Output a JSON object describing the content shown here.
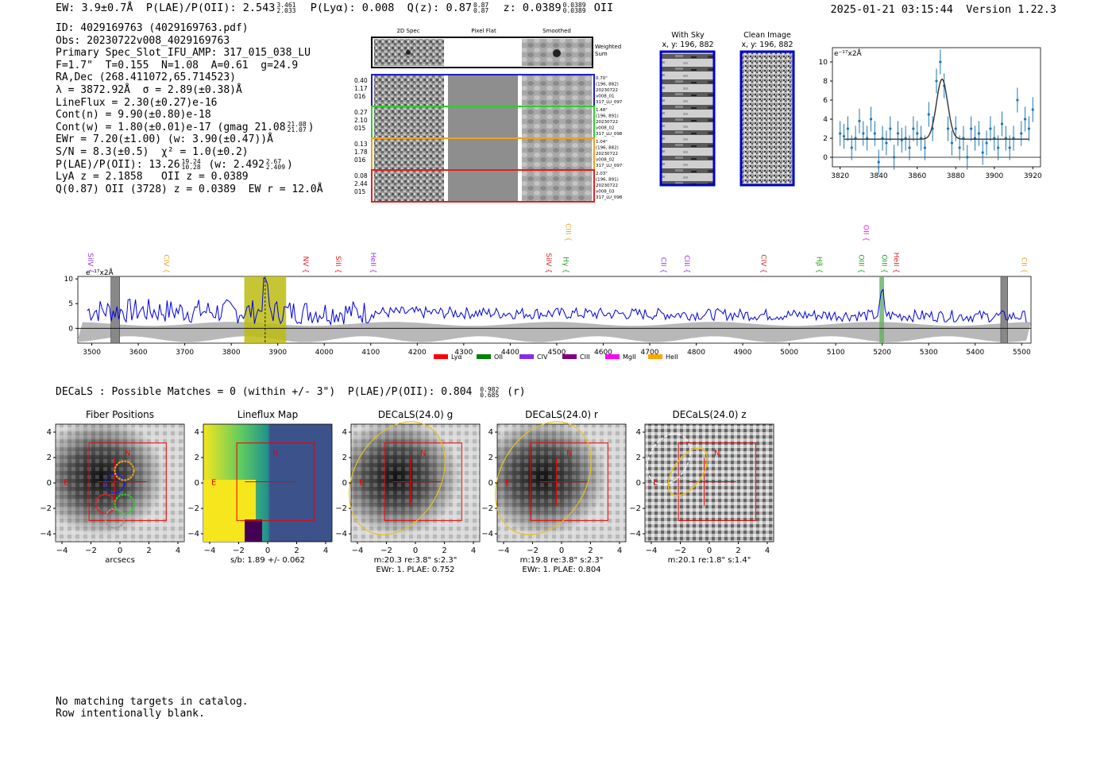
{
  "header": {
    "ew": "EW: 3.9±0.7Å",
    "plae_label": "P(LAE)/P(OII): 2.543",
    "plae_hi": "3.461",
    "plae_lo": "2.033",
    "plya": "P(Lyα): 0.008",
    "qz_label": "Q(z): 0.87",
    "qz_hi": "0.87",
    "qz_lo": "0.87",
    "z_label": "z: 0.0389",
    "z_hi": "0.0389",
    "z_lo": "0.0389",
    "line": "OII",
    "timestamp": "2025-01-21 03:15:44",
    "version": "Version 1.22.3"
  },
  "info": {
    "id": "ID: 4029169763 (4029169763.pdf)",
    "obs": "Obs: 20230722v008_4029169763",
    "slot": "Primary Spec_Slot_IFU_AMP: 317_015_038_LU",
    "params": "F=1.7\"  T=0.155  N=1.08  A=0.61  g=24.9",
    "radec": "RA,Dec (268.411072,65.714523)",
    "lambda": "λ = 3872.92Å  σ = 2.89(±0.38)Å",
    "lineflux": "LineFlux = 2.30(±0.27)e-16",
    "cont_n": "Cont(n) = 9.90(±0.80)e-18",
    "cont_w": "Cont(w) = 1.80(±0.01)e-17 (gmag 21.08",
    "gmag_hi": "21.08",
    "gmag_lo": "21.07",
    "ewr": "EWr = 7.20(±1.00) (w: 3.90(±0.47))Å",
    "sn": "S/N = 8.3(±0.5)  χ² = 1.0(±0.2)",
    "plae2": "P(LAE)/P(OII): 13.26",
    "plae2_hi": "19.24",
    "plae2_lo": "10.28",
    "plae2_w": "(w: 2.492",
    "plae2_w_hi": "2.67",
    "plae2_w_lo": "2.409",
    "lya_z": "LyA z = 2.1858   OII z = 0.0389",
    "q_line": "Q(0.87) OII (3728) z = 0.0389  EW r = 12.0Å"
  },
  "spec2d": {
    "col_titles": [
      "2D Spec",
      "Pixel Flat",
      "Smoothed"
    ],
    "weighted_sum": [
      "Weighted",
      "Sum"
    ],
    "rows": [
      {
        "left": [
          "0.40",
          "1.17",
          "016"
        ],
        "right": [
          "0.70\"",
          "(196, 882)",
          "20230722",
          "v008_01",
          "317_LU_097"
        ],
        "color": "#1f1fc8"
      },
      {
        "left": [
          "0.27",
          "2.10",
          "015"
        ],
        "right": [
          "1.48\"",
          "(196, 891)",
          "20230722",
          "v008_02",
          "317_LU_098"
        ],
        "color": "#2ecc2e"
      },
      {
        "left": [
          "0.13",
          "1.78",
          "016"
        ],
        "right": [
          "1.04\"",
          "(196, 882)",
          "20230722",
          "v008_02",
          "317_LU_097"
        ],
        "color": "#f0a020"
      },
      {
        "left": [
          "0.08",
          "2.44",
          "015"
        ],
        "right": [
          "2.03\"",
          "(196, 891)",
          "20230722",
          "v008_03",
          "317_LU_098"
        ],
        "color": "#e02020"
      }
    ]
  },
  "cutouts": {
    "with_sky": [
      "With Sky",
      "x, y: 196, 882"
    ],
    "clean": [
      "Clean Image",
      "x, y: 196, 882"
    ]
  },
  "chart_data": [
    {
      "type": "line",
      "title": "",
      "unit_label": "e⁻¹⁷x2Å",
      "x": [
        3820,
        3822,
        3824,
        3826,
        3828,
        3830,
        3832,
        3834,
        3836,
        3838,
        3840,
        3842,
        3844,
        3846,
        3848,
        3850,
        3852,
        3854,
        3856,
        3858,
        3860,
        3862,
        3864,
        3866,
        3868,
        3870,
        3872,
        3874,
        3876,
        3878,
        3880,
        3882,
        3884,
        3886,
        3888,
        3890,
        3892,
        3894,
        3896,
        3898,
        3900,
        3902,
        3904,
        3906,
        3908,
        3910,
        3912,
        3914,
        3916,
        3918,
        3920
      ],
      "data": [
        2.5,
        2.2,
        3.0,
        1.0,
        2.0,
        3.8,
        2.5,
        2.0,
        4.0,
        2.5,
        -0.5,
        2.0,
        1.5,
        3.0,
        0.0,
        2.5,
        1.8,
        2.0,
        1.0,
        3.0,
        2.5,
        2.0,
        1.0,
        4.5,
        3.0,
        8.0,
        10.0,
        7.5,
        3.0,
        1.5,
        3.0,
        1.0,
        2.0,
        0.0,
        3.0,
        2.0,
        2.5,
        0.5,
        1.5,
        3.0,
        2.0,
        1.0,
        3.5,
        2.0,
        1.0,
        2.0,
        6.0,
        2.5,
        4.0,
        3.0,
        5.0
      ],
      "fit_baseline": 1.9,
      "fit_peak": 8.2,
      "fit_center": 3872.9,
      "fit_sigma": 2.89,
      "xticks": [
        3820,
        3840,
        3860,
        3880,
        3900,
        3920
      ],
      "yticks": [
        0,
        2,
        4,
        6,
        8,
        10
      ],
      "xlim": [
        3816,
        3924
      ],
      "ylim": [
        -1,
        11.5
      ],
      "color": "#1f77b4"
    },
    {
      "type": "line",
      "title": "",
      "unit_label": "e⁻¹⁷x2Å",
      "xlim": [
        3470,
        5520
      ],
      "ylim": [
        -3,
        10.5
      ],
      "xticks": [
        3500,
        3600,
        3700,
        3800,
        3900,
        4000,
        4100,
        4200,
        4300,
        4400,
        4500,
        4600,
        4700,
        4800,
        4900,
        5000,
        5100,
        5200,
        5300,
        5400,
        5500
      ],
      "yticks": [
        0,
        5,
        10
      ],
      "color": "#0000e0",
      "emission_peak_x": 3872.9,
      "emission_peak_y": 10,
      "highlight_band": [
        3828,
        3918
      ],
      "masked_bands": [
        [
          3541,
          3560
        ],
        [
          5455,
          5470
        ]
      ],
      "oii_band": [
        5194,
        5204
      ],
      "lines": [
        {
          "x": 3492,
          "label": "SiIV",
          "color": "#9a30e0",
          "row": 1
        },
        {
          "x": 3655,
          "label": "CIV",
          "color": "#f0a020",
          "row": 1
        },
        {
          "x": 3955,
          "label": "NV",
          "color": "#e02020",
          "row": 1
        },
        {
          "x": 4025,
          "label": "SiII",
          "color": "#e02020",
          "row": 1
        },
        {
          "x": 4100,
          "label": "HeII",
          "color": "#9a30e0",
          "row": 1
        },
        {
          "x": 4478,
          "label": "SiIV",
          "color": "#e02020",
          "row": 1
        },
        {
          "x": 4515,
          "label": "Hγ",
          "color": "#20a020",
          "row": 1
        },
        {
          "x": 4520,
          "label": "CIII",
          "color": "#f0a020",
          "row": 0
        },
        {
          "x": 4725,
          "label": "CII",
          "color": "#9a30e0",
          "row": 1
        },
        {
          "x": 4775,
          "label": "CIII",
          "color": "#9a30e0",
          "row": 1
        },
        {
          "x": 4940,
          "label": "CIV",
          "color": "#e02020",
          "row": 1
        },
        {
          "x": 5060,
          "label": "Hβ",
          "color": "#20a020",
          "row": 1
        },
        {
          "x": 5150,
          "label": "OIII",
          "color": "#20a020",
          "row": 1
        },
        {
          "x": 5200,
          "label": "OIII",
          "color": "#20a020",
          "row": 1
        },
        {
          "x": 5225,
          "label": "HeII",
          "color": "#e02020",
          "row": 1
        },
        {
          "x": 5160,
          "label": "OII",
          "color": "#e020e0",
          "row": 0
        },
        {
          "x": 5500,
          "label": "CII",
          "color": "#f0a020",
          "row": 1
        }
      ],
      "legend": [
        {
          "label": "Lyα",
          "color": "#ff0000"
        },
        {
          "label": "OII",
          "color": "#008000"
        },
        {
          "label": "CIV",
          "color": "#8a2be2"
        },
        {
          "label": "CIII",
          "color": "#800080"
        },
        {
          "label": "MgII",
          "color": "#ff00ff"
        },
        {
          "label": "HeII",
          "color": "#ffa500"
        }
      ]
    }
  ],
  "decals": {
    "title": "DECaLS : Possible Matches = 0 (within +/- 3\")  P(LAE)/P(OII): 0.804",
    "plae_hi": "0.982",
    "plae_lo": "0.685",
    "band": "(r)",
    "panels": [
      {
        "title": "Fiber Positions",
        "caption1": "arcsecs",
        "caption2": ""
      },
      {
        "title": "Lineflux Map",
        "caption1": "s/b: 1.89 +/- 0.062",
        "caption2": ""
      },
      {
        "title": "DECaLS(24.0) g",
        "caption1": "m:20.3  re:3.8\"  s:2.3\"",
        "caption2": "EWr: 1. PLAE: 0.752"
      },
      {
        "title": "DECaLS(24.0) r",
        "caption1": "m:19.8  re:3.8\"  s:2.3\"",
        "caption2": "EWr: 1. PLAE: 0.804"
      },
      {
        "title": "DECaLS(24.0) z",
        "caption1": "m:20.1  re:1.8\"  s:1.4\"",
        "caption2": ""
      }
    ],
    "ticks": [
      "−4",
      "−2",
      "0",
      "2",
      "4"
    ],
    "marker_n": "N",
    "marker_e": "E"
  },
  "footer": {
    "line1": "No matching targets in catalog.",
    "line2": "Row intentionally blank."
  }
}
